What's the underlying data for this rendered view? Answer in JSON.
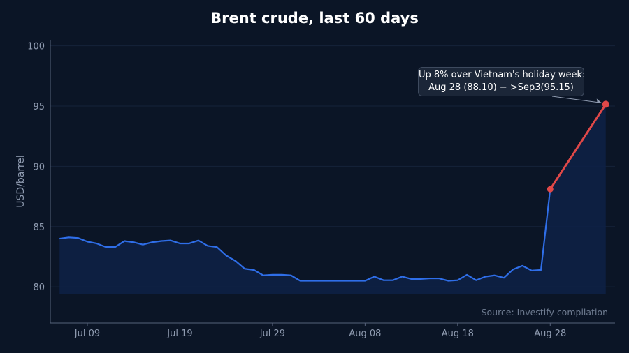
{
  "chart_data": {
    "type": "line",
    "title": "Brent crude, last 60 days",
    "ylabel": "USD/barrel",
    "xlabel": "",
    "ylim": [
      77,
      100.5
    ],
    "yticks": [
      80,
      85,
      90,
      95,
      100
    ],
    "x_start": "2025-07-05",
    "x_end": "2025-09-04",
    "xticks": [
      {
        "date": "2025-07-09",
        "label": "Jul 09"
      },
      {
        "date": "2025-07-19",
        "label": "Jul 19"
      },
      {
        "date": "2025-07-29",
        "label": "Jul 29"
      },
      {
        "date": "2025-08-08",
        "label": "Aug 08"
      },
      {
        "date": "2025-08-18",
        "label": "Aug 18"
      },
      {
        "date": "2025-08-28",
        "label": "Aug 28"
      }
    ],
    "grid": true,
    "series": [
      {
        "color": "#2f6ee8",
        "x": [
          "2025-07-06",
          "2025-07-07",
          "2025-07-08",
          "2025-07-09",
          "2025-07-10",
          "2025-07-11",
          "2025-07-12",
          "2025-07-13",
          "2025-07-14",
          "2025-07-15",
          "2025-07-16",
          "2025-07-17",
          "2025-07-18",
          "2025-07-19",
          "2025-07-20",
          "2025-07-21",
          "2025-07-22",
          "2025-07-23",
          "2025-07-24",
          "2025-07-25",
          "2025-07-26",
          "2025-07-27",
          "2025-07-28",
          "2025-07-29",
          "2025-07-30",
          "2025-07-31",
          "2025-08-01",
          "2025-08-02",
          "2025-08-03",
          "2025-08-04",
          "2025-08-05",
          "2025-08-06",
          "2025-08-07",
          "2025-08-08",
          "2025-08-09",
          "2025-08-10",
          "2025-08-11",
          "2025-08-12",
          "2025-08-13",
          "2025-08-14",
          "2025-08-15",
          "2025-08-16",
          "2025-08-17",
          "2025-08-18",
          "2025-08-19",
          "2025-08-20",
          "2025-08-21",
          "2025-08-22",
          "2025-08-23",
          "2025-08-24",
          "2025-08-25",
          "2025-08-26",
          "2025-08-27",
          "2025-08-28"
        ],
        "values": [
          84.0,
          84.1,
          84.05,
          83.75,
          83.6,
          83.3,
          83.3,
          83.8,
          83.7,
          83.5,
          83.7,
          83.8,
          83.85,
          83.6,
          83.6,
          83.85,
          83.4,
          83.3,
          82.6,
          82.15,
          81.5,
          81.4,
          80.95,
          81.0,
          81.0,
          80.95,
          80.5,
          80.5,
          80.5,
          80.5,
          80.5,
          80.5,
          80.5,
          80.5,
          80.85,
          80.55,
          80.55,
          80.85,
          80.65,
          80.65,
          80.7,
          80.7,
          80.5,
          80.55,
          81.0,
          80.55,
          80.85,
          80.95,
          80.75,
          81.45,
          81.75,
          81.35,
          81.4,
          88.1
        ]
      },
      {
        "color": "#e04848",
        "x": [
          "2025-08-28",
          "2025-09-03"
        ],
        "values": [
          88.1,
          95.15
        ]
      }
    ],
    "annotations": [
      {
        "line1": "Up 8% over Vietnam's holiday week:",
        "line2": "Aug 28 (88.10) − >Sep3(95.15)",
        "target_x": "2025-09-03",
        "target_y": 95.15
      }
    ],
    "source": "Source: Investify compilation"
  },
  "colors": {
    "background": "#0b1526",
    "line": "#2f6ee8",
    "highlight": "#e04848",
    "area_fill": "#0e2146",
    "grid": "#16233a",
    "axis": "#56627a"
  }
}
